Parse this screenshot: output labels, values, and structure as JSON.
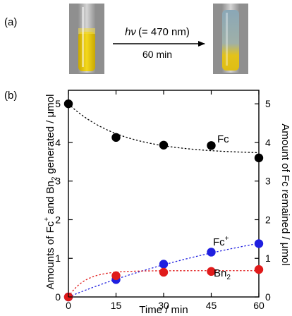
{
  "panel_a": {
    "label": "(a)",
    "arrow_top_symbol": "hν",
    "arrow_top_detail": "(= 470 nm)",
    "arrow_bottom": "60 min",
    "colors": {
      "tube_before": "#e8c400",
      "tube_after_top": "#8aa7b7",
      "tube_after_bottom": "#e3c21a"
    }
  },
  "panel_b": {
    "label": "(b)"
  },
  "chart_data": {
    "type": "scatter",
    "x_label": "Time / min",
    "x_ticks": [
      0,
      15,
      30,
      45,
      60
    ],
    "xlim": [
      0,
      60
    ],
    "y_left": {
      "label_parts": [
        "Amounts of Fc",
        "+",
        " and Bn",
        "2",
        " generated / μmol"
      ],
      "ticks": [
        0,
        1,
        2,
        3,
        4,
        5
      ],
      "range": [
        0,
        5.35
      ]
    },
    "y_right": {
      "label": "Amount of Fc remained / μmol",
      "ticks": [
        0,
        1,
        2,
        3,
        4,
        5
      ],
      "range": [
        0,
        5.35
      ]
    },
    "grid": false,
    "series": [
      {
        "name": "Fc",
        "color": "#000000",
        "axis": "right",
        "x": [
          0,
          15,
          30,
          45,
          60
        ],
        "y": [
          5.0,
          4.13,
          3.93,
          3.92,
          3.6
        ],
        "fit": {
          "type": "decay",
          "a": 3.7,
          "b": 1.3,
          "k": 0.06
        }
      },
      {
        "name_parts": [
          "Fc",
          "+"
        ],
        "color": "#1f1fe0",
        "axis": "left",
        "x": [
          0,
          15,
          30,
          45,
          60
        ],
        "y": [
          0.0,
          0.45,
          0.85,
          1.16,
          1.38
        ],
        "fit": {
          "type": "rise",
          "a": 2.5,
          "k": 0.0135
        }
      },
      {
        "name_parts": [
          "Bn",
          "2"
        ],
        "color": "#e01a1a",
        "axis": "left",
        "x": [
          0,
          15,
          30,
          45,
          60
        ],
        "y": [
          0.0,
          0.55,
          0.64,
          0.66,
          0.71
        ],
        "fit": {
          "type": "rise",
          "a": 0.68,
          "k": 0.19
        }
      }
    ]
  }
}
